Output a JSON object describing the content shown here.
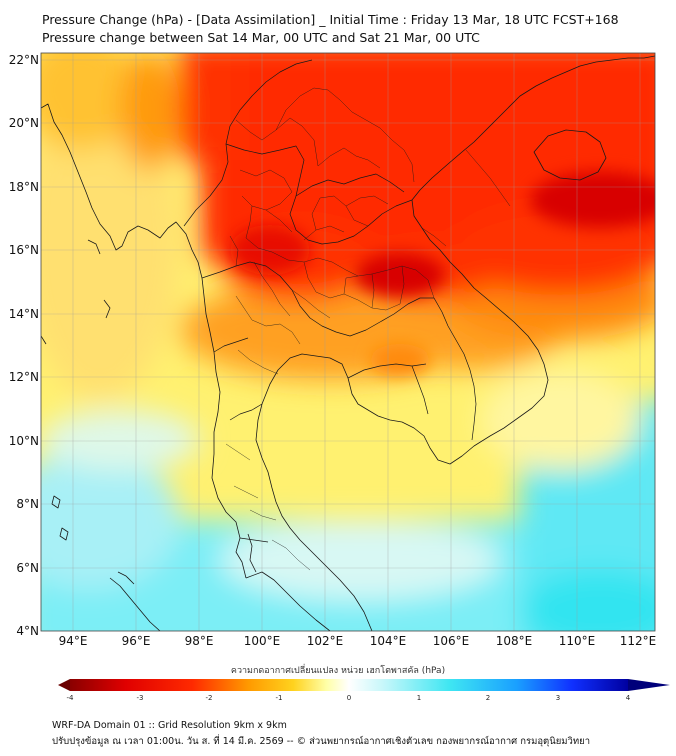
{
  "header": {
    "title": "Pressure Change (hPa) - [Data Assimilation] _ Initial Time : Friday 13 Mar, 18 UTC FCST+168",
    "subtitle": "Pressure change between Sat 14 Mar, 00 UTC and Sat 21 Mar, 00 UTC"
  },
  "map": {
    "lon_range": [
      93,
      112.4
    ],
    "lat_range": [
      4,
      22.2
    ],
    "lon_ticks": [
      94,
      96,
      98,
      100,
      102,
      104,
      106,
      108,
      110,
      112
    ],
    "lat_ticks": [
      4,
      6,
      8,
      10,
      12,
      14,
      16,
      18,
      20,
      22
    ],
    "lon_tick_labels": [
      "94°E",
      "96°E",
      "98°E",
      "100°E",
      "102°E",
      "104°E",
      "106°E",
      "108°E",
      "110°E",
      "112°E"
    ],
    "lat_tick_labels": [
      "4°N",
      "6°N",
      "8°N",
      "10°N",
      "12°N",
      "14°N",
      "16°N",
      "18°N",
      "20°N",
      "22°N"
    ],
    "gridlines": true
  },
  "colorbar": {
    "label": "ความกดอากาศเปลี่ยนแปลง หน่วย เฮกโตพาสคัล (hPa)",
    "min": -4,
    "max": 4,
    "ticks": [
      -4,
      -3,
      -2,
      -1,
      0,
      1,
      2,
      3,
      4
    ],
    "tick_labels": [
      "-4",
      "-3",
      "-2",
      "-1",
      "0",
      "1",
      "2",
      "3",
      "4"
    ],
    "extend": "both",
    "colors": [
      "#7a0000",
      "#e00000",
      "#ff2000",
      "#ff8c00",
      "#ffd21e",
      "#ffffa0",
      "#ffffff",
      "#b8f5f8",
      "#3fe6f2",
      "#1a6cff",
      "#0000a8"
    ]
  },
  "footer": {
    "line1": "WRF-DA Domain 01 :: Grid Resolution 9km x 9km",
    "line2": "ปรับปรุงข้อมูล ณ เวลา 01:00น. วัน ส. ที่ 14 มี.ค. 2569 -- © ส่วนพยากรณ์อากาศเชิงตัวเลข กองพยากรณ์อากาศ กรมอุตุนิยมวิทยา"
  }
}
